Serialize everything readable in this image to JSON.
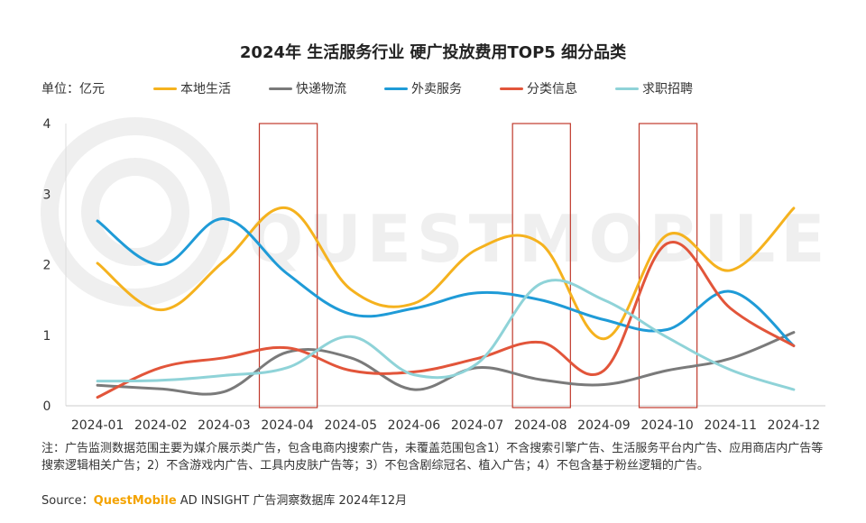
{
  "colors": {
    "本地生活": "#f5b21e",
    "快递物流": "#7a7a7a",
    "外卖服务": "#1f9bd7",
    "分类信息": "#e2553a",
    "求职招聘": "#8fd3d8",
    "highlight_box": "#c0392b"
  },
  "unit_label": "单位：亿元",
  "footnote": "注：广告监测数据范围主要为媒介展示类广告，包含电商内搜索广告，未覆盖范围包含1）不含搜索引擎广告、生活服务平台内广告、应用商店内广告等搜索逻辑相关广告；2）不含游戏内广告、工具内皮肤广告等；3）不包含剧综冠名、植入广告；4）不包含基于粉丝逻辑的广告。",
  "source": {
    "prefix": "Source：",
    "brand": "QuestMobile",
    "suffix": " AD INSIGHT 广告洞察数据库 2024年12月"
  },
  "watermark": "QUESTMOBILE",
  "chart_data": {
    "type": "line",
    "title": "2024年 生活服务行业 硬广投放费用TOP5 细分品类",
    "categories": [
      "2024-01",
      "2024-02",
      "2024-03",
      "2024-04",
      "2024-05",
      "2024-06",
      "2024-07",
      "2024-08",
      "2024-09",
      "2024-10",
      "2024-11",
      "2024-12"
    ],
    "ylim": [
      0,
      4
    ],
    "yticks": [
      0,
      1,
      2,
      3,
      4
    ],
    "grid": false,
    "legend_position": "top",
    "highlight_categories": [
      "2024-04",
      "2024-08",
      "2024-10"
    ],
    "series": [
      {
        "name": "本地生活",
        "values": [
          2.02,
          1.36,
          2.05,
          2.8,
          1.65,
          1.45,
          2.22,
          2.3,
          0.95,
          2.42,
          1.92,
          2.8
        ]
      },
      {
        "name": "快递物流",
        "values": [
          0.29,
          0.24,
          0.2,
          0.76,
          0.68,
          0.23,
          0.54,
          0.37,
          0.3,
          0.5,
          0.67,
          1.04
        ]
      },
      {
        "name": "外卖服务",
        "values": [
          2.62,
          2.0,
          2.65,
          1.87,
          1.3,
          1.38,
          1.6,
          1.5,
          1.22,
          1.08,
          1.62,
          0.85
        ]
      },
      {
        "name": "分类信息",
        "values": [
          0.12,
          0.54,
          0.68,
          0.82,
          0.5,
          0.48,
          0.67,
          0.9,
          0.5,
          2.3,
          1.38,
          0.85
        ]
      },
      {
        "name": "求职招聘",
        "values": [
          0.35,
          0.36,
          0.43,
          0.54,
          0.98,
          0.44,
          0.6,
          1.73,
          1.5,
          0.97,
          0.51,
          0.23
        ]
      }
    ]
  }
}
